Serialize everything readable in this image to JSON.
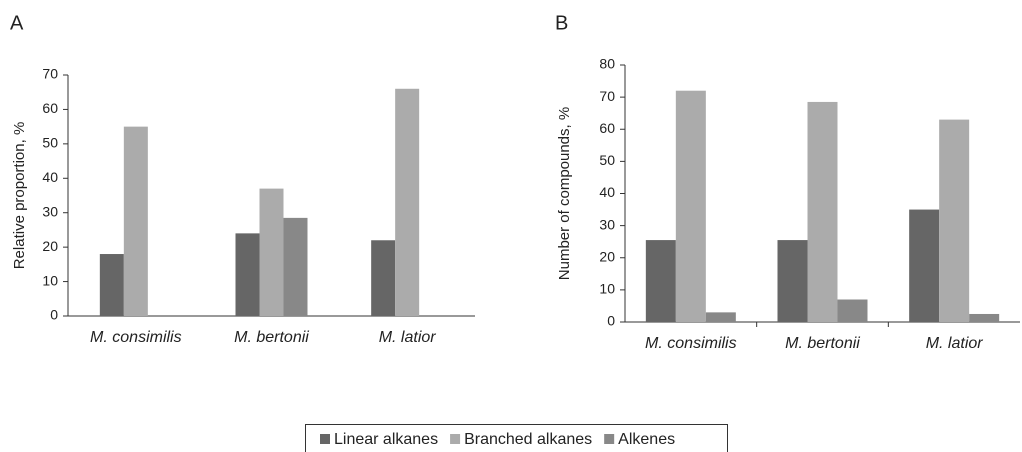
{
  "chart_data": [
    {
      "type": "bar",
      "label": "A",
      "y_label": "Relative proportion, %",
      "categories": [
        "M. consimilis",
        "M. bertonii",
        "M. latior"
      ],
      "series": [
        {
          "name": "Linear alkanes",
          "color": "#666666",
          "values": [
            18,
            24,
            22
          ]
        },
        {
          "name": "Branched alkanes",
          "color": "#ababab",
          "values": [
            55,
            37,
            66
          ]
        },
        {
          "name": "Alkenes",
          "color": "#888888",
          "values": [
            null,
            28.5,
            null
          ]
        }
      ],
      "ylim": [
        0,
        70
      ],
      "yticks": [
        0,
        10,
        20,
        30,
        40,
        50,
        60,
        70
      ]
    },
    {
      "type": "bar",
      "label": "B",
      "y_label": "Number of compounds, %",
      "categories": [
        "M. consimilis",
        "M. bertonii",
        "M. latior"
      ],
      "series": [
        {
          "color": "#666666",
          "values": [
            25.5,
            25.5,
            35
          ]
        },
        {
          "color": "#ababab",
          "values": [
            72,
            68.5,
            63
          ]
        },
        {
          "color": "#888888",
          "values": [
            3,
            7,
            2.5
          ]
        }
      ],
      "ylim": [
        0,
        80
      ],
      "yticks": [
        0,
        10,
        20,
        30,
        40,
        50,
        60,
        70,
        80
      ]
    }
  ]
}
